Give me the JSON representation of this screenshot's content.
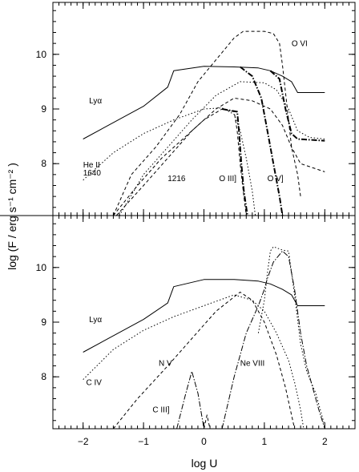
{
  "chart_data": [
    {
      "type": "line",
      "panel": "top",
      "ylim": [
        7.05,
        10.95
      ],
      "xlim": [
        -2.5,
        2.5
      ],
      "series": [
        {
          "id": "lya",
          "style": "solid",
          "width": 1.0,
          "points": [
            [
              -2,
              8.45
            ],
            [
              -1,
              9.05
            ],
            [
              -0.6,
              9.4
            ],
            [
              -0.5,
              9.7
            ],
            [
              0,
              9.78
            ],
            [
              0.5,
              9.77
            ],
            [
              0.9,
              9.75
            ],
            [
              1.1,
              9.7
            ],
            [
              1.3,
              9.6
            ],
            [
              1.45,
              9.5
            ],
            [
              1.55,
              9.3
            ],
            [
              1.7,
              9.3
            ],
            [
              2,
              9.3
            ]
          ]
        },
        {
          "id": "ovi",
          "style": "dashed",
          "width": 1.0,
          "points": [
            [
              -1.5,
              7.05
            ],
            [
              -1.2,
              7.8
            ],
            [
              -0.8,
              8.3
            ],
            [
              -0.4,
              8.9
            ],
            [
              -0.1,
              9.5
            ],
            [
              0.2,
              9.9
            ],
            [
              0.5,
              10.3
            ],
            [
              0.65,
              10.42
            ],
            [
              1.0,
              10.42
            ],
            [
              1.15,
              10.38
            ],
            [
              1.25,
              10.2
            ],
            [
              1.3,
              9.8
            ],
            [
              1.35,
              9.3
            ],
            [
              1.4,
              8.8
            ],
            [
              1.45,
              8.3
            ],
            [
              1.55,
              7.8
            ],
            [
              1.6,
              7.4
            ]
          ]
        },
        {
          "id": "heii",
          "style": "dotted",
          "width": 1.0,
          "points": [
            [
              -2,
              7.7
            ],
            [
              -1.5,
              8.2
            ],
            [
              -1,
              8.55
            ],
            [
              -0.5,
              8.8
            ],
            [
              0,
              9.0
            ],
            [
              0.3,
              9.02
            ],
            [
              0.5,
              8.9
            ],
            [
              0.6,
              8.6
            ],
            [
              0.7,
              8.1
            ],
            [
              0.8,
              7.5
            ],
            [
              0.85,
              7.05
            ]
          ]
        },
        {
          "id": "lya1216",
          "style": "dashed",
          "width": 1.0,
          "points": [
            [
              -1.5,
              7.05
            ],
            [
              -1.1,
              7.6
            ],
            [
              -0.7,
              8.1
            ],
            [
              -0.3,
              8.5
            ],
            [
              0,
              8.8
            ],
            [
              0.3,
              9.0
            ],
            [
              0.5,
              8.95
            ],
            [
              0.55,
              8.6
            ],
            [
              0.6,
              8.0
            ],
            [
              0.65,
              7.5
            ],
            [
              0.7,
              7.05
            ]
          ]
        },
        {
          "id": "oiii",
          "style": "dashdot",
          "width": 2.0,
          "points": [
            [
              0.3,
              9.0
            ],
            [
              0.55,
              8.95
            ],
            [
              0.58,
              8.6
            ],
            [
              0.62,
              8.0
            ],
            [
              0.66,
              7.5
            ],
            [
              0.72,
              7.05
            ]
          ]
        },
        {
          "id": "ov_dot",
          "style": "dotted",
          "width": 1.0,
          "points": [
            [
              -1.4,
              7.05
            ],
            [
              -1.0,
              7.8
            ],
            [
              -0.6,
              8.3
            ],
            [
              -0.2,
              8.8
            ],
            [
              0.2,
              9.25
            ],
            [
              0.6,
              9.5
            ],
            [
              1.0,
              9.48
            ],
            [
              1.2,
              9.35
            ],
            [
              1.4,
              9.0
            ],
            [
              1.55,
              8.6
            ],
            [
              1.75,
              8.48
            ],
            [
              2.0,
              8.45
            ]
          ]
        },
        {
          "id": "ov_dash",
          "style": "dashed",
          "width": 1.0,
          "points": [
            [
              -1.45,
              7.05
            ],
            [
              -1.0,
              7.6
            ],
            [
              -0.6,
              8.1
            ],
            [
              -0.2,
              8.6
            ],
            [
              0.2,
              9.0
            ],
            [
              0.5,
              9.2
            ],
            [
              0.8,
              9.15
            ],
            [
              1.1,
              9.0
            ],
            [
              1.3,
              8.7
            ],
            [
              1.45,
              8.3
            ],
            [
              1.6,
              8.0
            ],
            [
              2.0,
              7.85
            ]
          ]
        },
        {
          "id": "ov_thick",
          "style": "dashdot",
          "width": 2.0,
          "points": [
            [
              0.6,
              9.77
            ],
            [
              0.8,
              9.6
            ],
            [
              0.95,
              9.2
            ],
            [
              1.05,
              8.6
            ],
            [
              1.15,
              8.0
            ],
            [
              1.25,
              7.4
            ],
            [
              1.3,
              7.05
            ]
          ]
        },
        {
          "id": "ovi_thick",
          "style": "dashdot",
          "width": 2.0,
          "points": [
            [
              1.1,
              9.7
            ],
            [
              1.25,
              9.55
            ],
            [
              1.35,
              9.0
            ],
            [
              1.45,
              8.55
            ],
            [
              1.55,
              8.45
            ],
            [
              2.0,
              8.42
            ]
          ]
        }
      ]
    },
    {
      "type": "line",
      "panel": "bottom",
      "ylim": [
        7.05,
        10.95
      ],
      "xlim": [
        -2.5,
        2.5
      ],
      "series": [
        {
          "id": "lya",
          "style": "solid",
          "width": 1.0,
          "points": [
            [
              -2,
              8.45
            ],
            [
              -1,
              9.05
            ],
            [
              -0.6,
              9.35
            ],
            [
              -0.5,
              9.65
            ],
            [
              0,
              9.78
            ],
            [
              0.5,
              9.78
            ],
            [
              0.9,
              9.75
            ],
            [
              1.1,
              9.7
            ],
            [
              1.3,
              9.6
            ],
            [
              1.45,
              9.5
            ],
            [
              1.55,
              9.3
            ],
            [
              1.7,
              9.3
            ],
            [
              2,
              9.3
            ]
          ]
        },
        {
          "id": "civ",
          "style": "dotted",
          "width": 1.0,
          "points": [
            [
              -2,
              7.95
            ],
            [
              -1.5,
              8.5
            ],
            [
              -1,
              8.85
            ],
            [
              -0.5,
              9.1
            ],
            [
              0,
              9.3
            ],
            [
              0.5,
              9.5
            ],
            [
              0.8,
              9.4
            ],
            [
              1.0,
              9.2
            ],
            [
              1.2,
              8.8
            ],
            [
              1.4,
              8.3
            ],
            [
              1.5,
              7.9
            ],
            [
              1.6,
              7.4
            ],
            [
              1.65,
              7.05
            ]
          ]
        },
        {
          "id": "nv",
          "style": "dashed",
          "width": 1.0,
          "points": [
            [
              -1.5,
              7.05
            ],
            [
              -1.1,
              7.6
            ],
            [
              -0.6,
              8.2
            ],
            [
              -0.2,
              8.7
            ],
            [
              0.2,
              9.2
            ],
            [
              0.6,
              9.55
            ],
            [
              0.8,
              9.4
            ],
            [
              1.0,
              9.0
            ],
            [
              1.2,
              8.4
            ],
            [
              1.35,
              7.8
            ],
            [
              1.45,
              7.3
            ],
            [
              1.5,
              7.05
            ]
          ]
        },
        {
          "id": "neviii",
          "style": "dashdot",
          "width": 1.0,
          "points": [
            [
              0.3,
              7.05
            ],
            [
              0.5,
              8.0
            ],
            [
              0.7,
              8.8
            ],
            [
              0.9,
              9.3
            ],
            [
              1.0,
              9.6
            ],
            [
              1.05,
              9.8
            ],
            [
              1.15,
              10.1
            ],
            [
              1.3,
              10.3
            ],
            [
              1.4,
              10.2
            ],
            [
              1.5,
              9.6
            ],
            [
              1.6,
              8.8
            ],
            [
              1.7,
              8.2
            ],
            [
              1.8,
              7.8
            ],
            [
              1.9,
              7.4
            ],
            [
              2.0,
              7.05
            ]
          ]
        },
        {
          "id": "ovi_bot",
          "style": "dotted",
          "width": 1.0,
          "points": [
            [
              0.9,
              8.8
            ],
            [
              1.0,
              9.4
            ],
            [
              1.05,
              9.9
            ],
            [
              1.1,
              10.3
            ],
            [
              1.15,
              10.38
            ],
            [
              1.3,
              10.32
            ],
            [
              1.4,
              10.3
            ],
            [
              1.5,
              9.5
            ],
            [
              1.6,
              8.6
            ],
            [
              1.7,
              8.1
            ],
            [
              1.85,
              7.7
            ],
            [
              2.0,
              7.1
            ]
          ]
        },
        {
          "id": "ciii",
          "style": "dashdot",
          "width": 1.0,
          "points": [
            [
              -0.45,
              7.05
            ],
            [
              -0.3,
              7.7
            ],
            [
              -0.2,
              8.1
            ],
            [
              -0.1,
              7.7
            ],
            [
              0.0,
              7.05
            ]
          ]
        },
        {
          "id": "ciii2",
          "style": "dashed",
          "width": 1.0,
          "points": [
            [
              0.0,
              7.05
            ],
            [
              0.05,
              7.3
            ],
            [
              0.1,
              7.05
            ]
          ]
        }
      ]
    }
  ],
  "axes": {
    "xlabel": "log U",
    "ylabel": "log (F / erg s⁻¹ cm⁻² )",
    "xticks": [
      "−2",
      "−1",
      "0",
      "1",
      "2"
    ],
    "xtick_values": [
      -2,
      -1,
      0,
      1,
      2
    ],
    "yticks": [
      "10",
      "9",
      "8"
    ],
    "ytick_values": [
      10,
      9,
      8
    ]
  },
  "labels_top": [
    {
      "text": "O VI",
      "x": 1.45,
      "y": 10.15
    },
    {
      "text": "Lyα",
      "x": -1.9,
      "y": 9.1
    },
    {
      "text": "He II",
      "x": -2.0,
      "y": 7.93
    },
    {
      "text": "1640",
      "x": -2.0,
      "y": 7.78
    },
    {
      "text": "1216",
      "x": -0.6,
      "y": 7.68
    },
    {
      "text": "O III]",
      "x": 0.25,
      "y": 7.68
    },
    {
      "text": "O V]",
      "x": 1.05,
      "y": 7.68
    }
  ],
  "labels_bottom": [
    {
      "text": "Lyα",
      "x": -1.9,
      "y": 9.0
    },
    {
      "text": "C IV",
      "x": -1.95,
      "y": 7.85
    },
    {
      "text": "N V",
      "x": -0.75,
      "y": 8.2
    },
    {
      "text": "Ne VIII",
      "x": 0.6,
      "y": 8.2
    },
    {
      "text": "C III]",
      "x": -0.85,
      "y": 7.35
    }
  ]
}
